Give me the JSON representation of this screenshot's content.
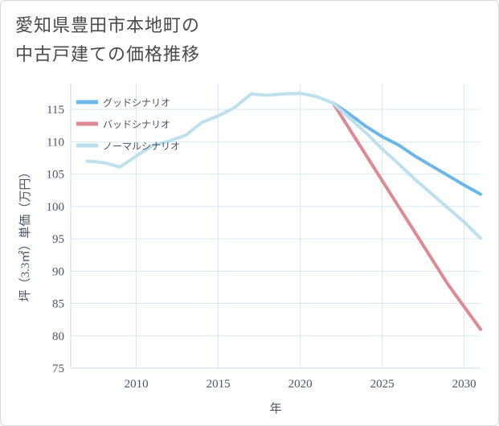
{
  "title": {
    "line1": "愛知県豊田市本地町の",
    "line2": "中古戸建ての価格推移"
  },
  "colors": {
    "good": "#6cb7ea",
    "bad": "#dd8a92",
    "normal": "#bde0ee",
    "grid": "#d7e8f0",
    "text": "#4a5568"
  },
  "chart_data": {
    "type": "line",
    "xlabel": "年",
    "ylabel": "坪（3.3㎡）単価（万円）",
    "xlim": [
      2006,
      2031
    ],
    "ylim": [
      75,
      119
    ],
    "xticks": [
      2010,
      2015,
      2020,
      2025,
      2030
    ],
    "yticks": [
      75,
      80,
      85,
      90,
      95,
      100,
      105,
      110,
      115
    ],
    "legend_position": "top-left",
    "series": [
      {
        "name": "グッドシナリオ",
        "color": "#6cb7ea",
        "x": [
          2022,
          2023,
          2024,
          2025,
          2026,
          2027,
          2028,
          2029,
          2030,
          2031
        ],
        "y": [
          116.0,
          114.3,
          112.4,
          110.8,
          109.5,
          107.8,
          106.3,
          104.8,
          103.3,
          101.9
        ]
      },
      {
        "name": "バッドシナリオ",
        "color": "#dd8a92",
        "x": [
          2022,
          2023,
          2024,
          2025,
          2026,
          2027,
          2028,
          2029,
          2030,
          2031
        ],
        "y": [
          116.0,
          112.0,
          108.0,
          104.0,
          100.0,
          96.0,
          92.0,
          88.0,
          84.5,
          81.0
        ]
      },
      {
        "name": "ノーマルシナリオ",
        "color": "#bde0ee",
        "x": [
          2007,
          2008,
          2009,
          2010,
          2011,
          2012,
          2013,
          2014,
          2015,
          2016,
          2017,
          2018,
          2019,
          2020,
          2021,
          2022,
          2023,
          2024,
          2025,
          2026,
          2027,
          2028,
          2029,
          2030,
          2031
        ],
        "y": [
          107.0,
          106.8,
          106.1,
          107.8,
          109.4,
          110.1,
          111.0,
          113.0,
          114.0,
          115.3,
          117.4,
          117.2,
          117.4,
          117.5,
          117.0,
          116.0,
          113.7,
          111.4,
          108.9,
          106.6,
          104.2,
          102.0,
          99.8,
          97.6,
          95.1
        ]
      }
    ]
  }
}
